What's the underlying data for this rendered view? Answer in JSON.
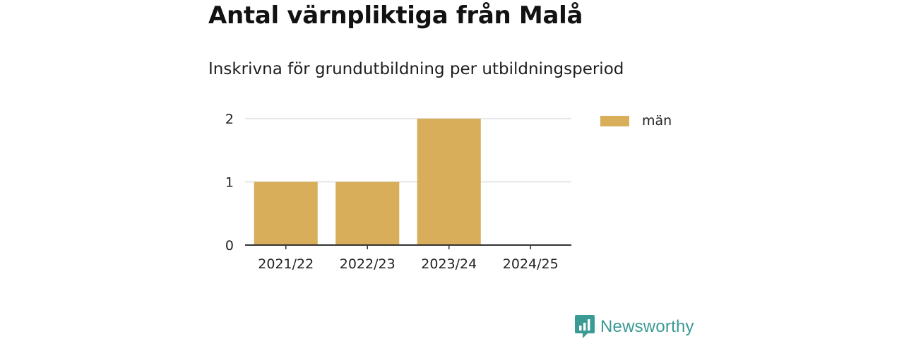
{
  "header": {
    "title": "Antal värnpliktiga från Malå",
    "subtitle": "Inskrivna för grundutbildning per utbildningsperiod"
  },
  "legend": {
    "label": "män"
  },
  "footer": {
    "brand": "Newsworthy",
    "brand_color": "#3a9a94",
    "brand_icon": "bar-chart-speech-bubble-icon"
  },
  "colors": {
    "bar": "#d8ae5b",
    "grid": "#dddddd",
    "axis": "#333333"
  },
  "chart_data": {
    "type": "bar",
    "title": "Antal värnpliktiga från Malå",
    "subtitle": "Inskrivna för grundutbildning per utbildningsperiod",
    "categories": [
      "2021/22",
      "2022/23",
      "2023/24",
      "2024/25"
    ],
    "series": [
      {
        "name": "män",
        "values": [
          1,
          1,
          2,
          0
        ]
      }
    ],
    "xlabel": "",
    "ylabel": "",
    "ylim": [
      0,
      2
    ],
    "yticks": [
      0,
      1,
      2
    ],
    "grid": true,
    "legend_position": "right"
  }
}
